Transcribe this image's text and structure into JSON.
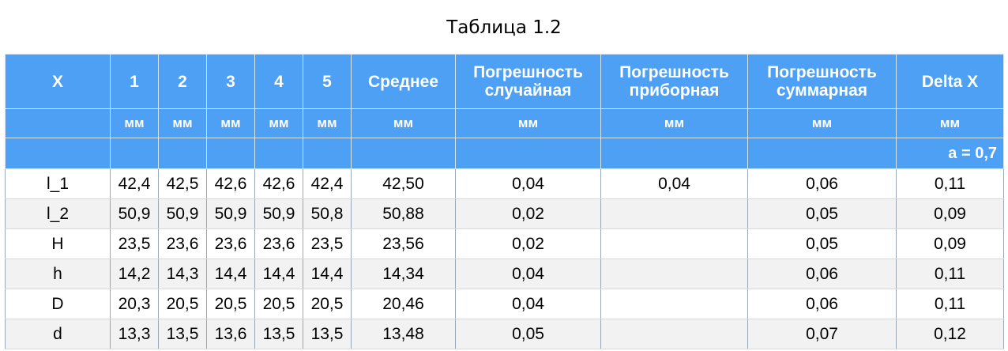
{
  "caption": "Таблица 1.2",
  "header": {
    "columns": [
      "X",
      "1",
      "2",
      "3",
      "4",
      "5",
      "Среднее",
      "Погрешность случайная",
      "Погрешность приборная",
      "Погрешность суммарная",
      "Delta X"
    ],
    "units": [
      "",
      "мм",
      "мм",
      "мм",
      "мм",
      "мм",
      "мм",
      "мм",
      "мм",
      "мм",
      "мм"
    ],
    "note": "a = 0,7"
  },
  "rows": [
    [
      "l_1",
      "42,4",
      "42,5",
      "42,6",
      "42,6",
      "42,4",
      "42,50",
      "0,04",
      "0,04",
      "0,06",
      "0,11"
    ],
    [
      "l_2",
      "50,9",
      "50,9",
      "50,9",
      "50,9",
      "50,8",
      "50,88",
      "0,02",
      "",
      "0,05",
      "0,09"
    ],
    [
      "H",
      "23,5",
      "23,6",
      "23,6",
      "23,6",
      "23,5",
      "23,56",
      "0,02",
      "",
      "0,05",
      "0,09"
    ],
    [
      "h",
      "14,2",
      "14,3",
      "14,4",
      "14,4",
      "14,4",
      "14,34",
      "0,04",
      "",
      "0,06",
      "0,11"
    ],
    [
      "D",
      "20,3",
      "20,5",
      "20,5",
      "20,5",
      "20,5",
      "20,46",
      "0,04",
      "",
      "0,06",
      "0,11"
    ],
    [
      "d",
      "13,3",
      "13,5",
      "13,6",
      "13,5",
      "13,5",
      "13,48",
      "0,05",
      "",
      "0,07",
      "0,12"
    ]
  ],
  "colors": {
    "header_bg": "#4ea0f4",
    "header_text": "#ffffff",
    "alt_row": "#f2f2f2"
  }
}
